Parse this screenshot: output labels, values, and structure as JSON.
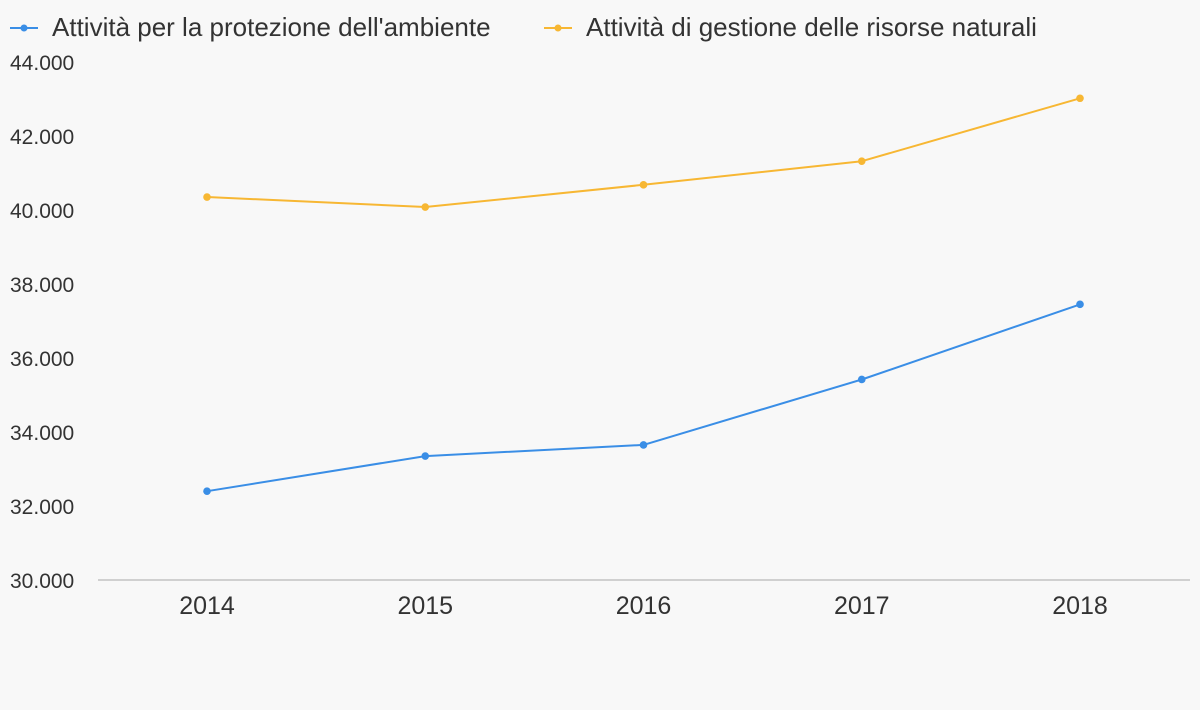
{
  "chart_data": {
    "type": "line",
    "categories": [
      "2014",
      "2015",
      "2016",
      "2017",
      "2018"
    ],
    "series": [
      {
        "name": "Attività per la protezione dell'ambiente",
        "color": "#3a8ee6",
        "values": [
          32400,
          33350,
          33650,
          35420,
          37450
        ]
      },
      {
        "name": "Attività di gestione delle risorse naturali",
        "color": "#f7b733",
        "values": [
          40350,
          40080,
          40680,
          41320,
          43020
        ]
      }
    ],
    "ylim": [
      30000,
      44000
    ],
    "yticks": [
      30000,
      32000,
      34000,
      36000,
      38000,
      40000,
      42000,
      44000
    ],
    "ytick_labels": [
      "30.000",
      "32.000",
      "34.000",
      "36.000",
      "38.000",
      "40.000",
      "42.000",
      "44.000"
    ],
    "grid": false,
    "legend_position": "top-left",
    "axis_color": "#d0d0d0"
  }
}
